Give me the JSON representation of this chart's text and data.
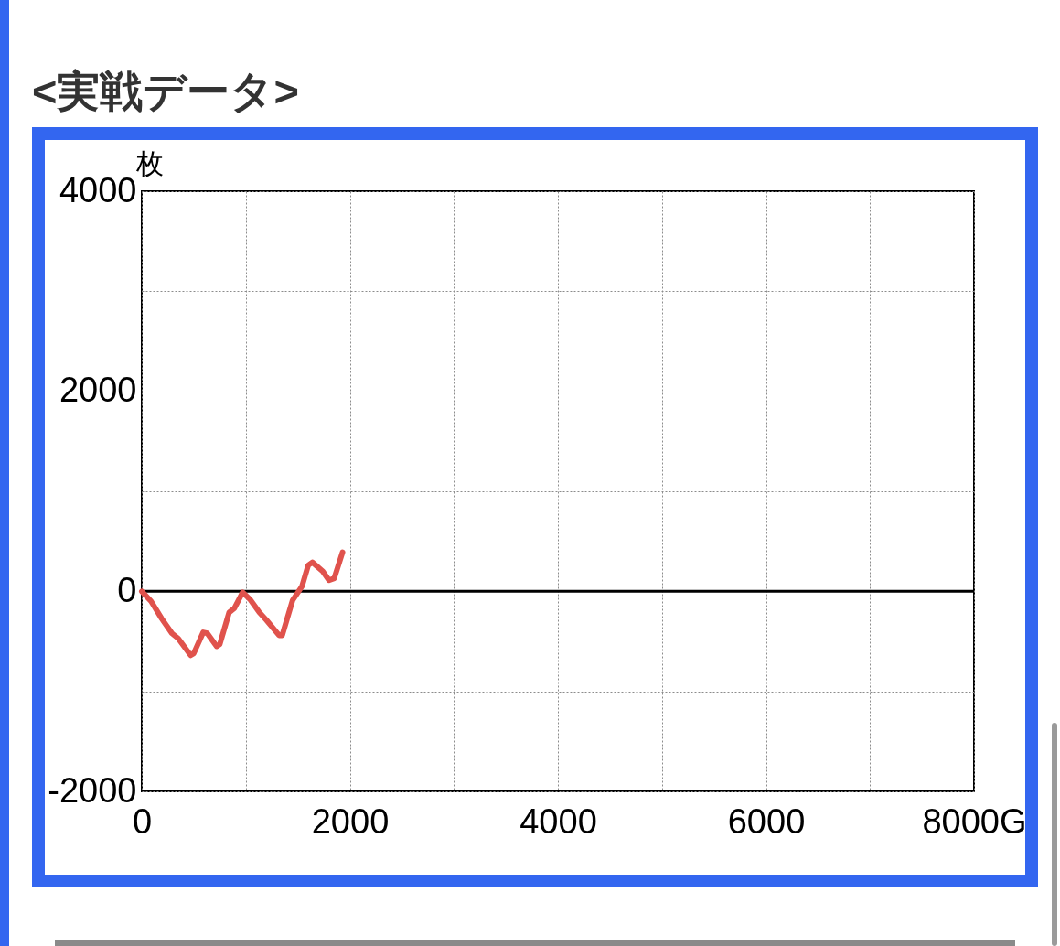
{
  "chart_data": {
    "type": "line",
    "title": "<実戦データ>",
    "ylabel": "枚",
    "x": [
      0,
      90,
      190,
      290,
      350,
      470,
      500,
      590,
      630,
      720,
      750,
      840,
      890,
      970,
      1040,
      1130,
      1200,
      1320,
      1350,
      1390,
      1450,
      1540,
      1600,
      1640,
      1740,
      1800,
      1850,
      1930
    ],
    "series": [
      {
        "color": "#e0524c",
        "values": [
          0,
          -100,
          -270,
          -420,
          -470,
          -640,
          -620,
          -410,
          -420,
          -550,
          -530,
          -210,
          -170,
          -10,
          -80,
          -210,
          -290,
          -440,
          -440,
          -300,
          -90,
          50,
          260,
          290,
          200,
          110,
          130,
          390
        ]
      }
    ],
    "xlim": [
      0,
      8000
    ],
    "ylim": [
      -2000,
      4000
    ],
    "xticks": [
      0,
      {
        "value": 1000,
        "label": null
      },
      2000,
      {
        "value": 3000,
        "label": null
      },
      4000,
      {
        "value": 5000,
        "label": null
      },
      6000,
      {
        "value": 7000,
        "label": null
      },
      {
        "value": 8000,
        "label": "8000G"
      }
    ],
    "yticks": [
      -2000,
      {
        "value": -1000,
        "label": null
      },
      0,
      {
        "value": 1000,
        "label": null
      },
      2000,
      {
        "value": 3000,
        "label": null
      },
      4000
    ],
    "grid": true,
    "line_style": "solid",
    "ref_lines": [
      {
        "axis": "y",
        "value": 0,
        "color": "#000000"
      }
    ]
  }
}
